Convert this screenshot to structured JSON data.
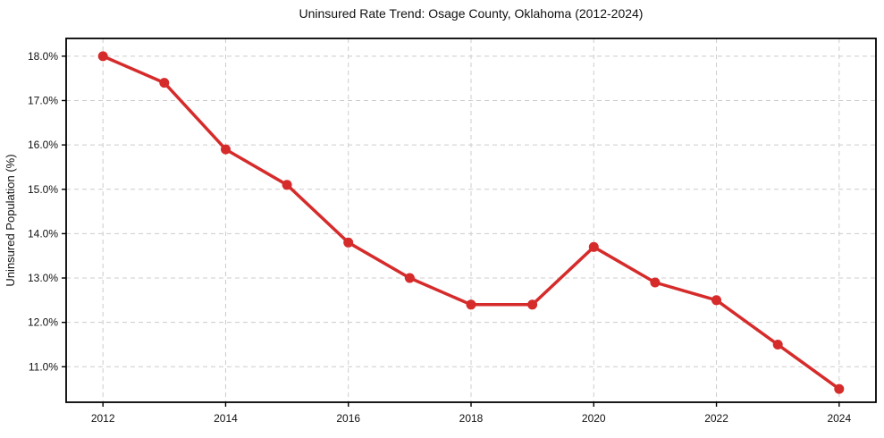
{
  "chart_data": {
    "type": "line",
    "title": "Uninsured Rate Trend: Osage County, Oklahoma (2012-2024)",
    "xlabel": "",
    "ylabel": "Uninsured Population (%)",
    "x": [
      2012,
      2013,
      2014,
      2015,
      2016,
      2017,
      2018,
      2019,
      2020,
      2021,
      2022,
      2023,
      2024
    ],
    "y": [
      18.0,
      17.4,
      15.9,
      15.1,
      13.8,
      13.0,
      12.4,
      12.4,
      13.7,
      12.9,
      12.5,
      11.5,
      10.5
    ],
    "xticks": [
      2012,
      2014,
      2016,
      2018,
      2020,
      2022,
      2024
    ],
    "xtick_labels": [
      "2012",
      "2014",
      "2016",
      "2018",
      "2020",
      "2022",
      "2024"
    ],
    "yticks": [
      11,
      12,
      13,
      14,
      15,
      16,
      17,
      18
    ],
    "ytick_labels": [
      "11.0%",
      "12.0%",
      "13.0%",
      "14.0%",
      "15.0%",
      "16.0%",
      "17.0%",
      "18.0%"
    ],
    "xlim": [
      2011.4,
      2024.6
    ],
    "ylim": [
      10.2,
      18.4
    ],
    "grid": true,
    "grid_style": "dashed",
    "legend": null,
    "marker": "circle",
    "colors": {
      "line": "#d62b2b",
      "marker": "#d62b2b",
      "grid": "#cccccc",
      "axis": "#000000",
      "tick_text": "#111111",
      "background": "#ffffff"
    }
  }
}
